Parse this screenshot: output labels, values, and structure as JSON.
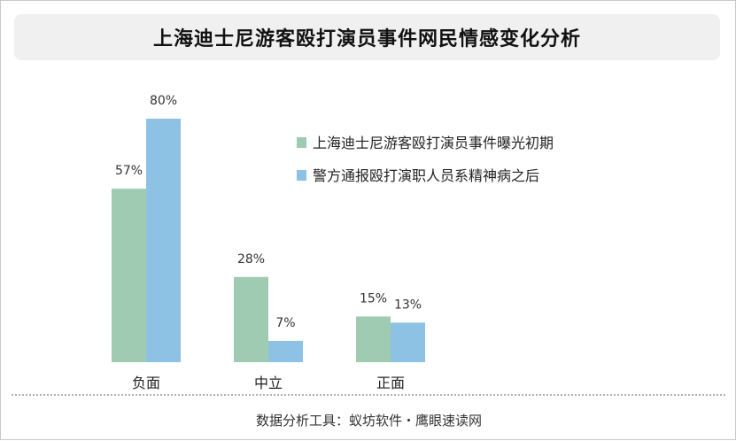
{
  "chart_data": {
    "type": "bar",
    "title": "上海迪士尼游客殴打演员事件网民情感变化分析",
    "categories": [
      "负面",
      "中立",
      "正面"
    ],
    "series": [
      {
        "name": "上海迪士尼游客殴打演员事件曝光初期",
        "values": [
          57,
          28,
          15
        ],
        "labels": [
          "57%",
          "28%",
          "15%"
        ],
        "color": "#9ecbb1"
      },
      {
        "name": "警方通报殴打演职人员系精神病之后",
        "values": [
          80,
          7,
          13
        ],
        "labels": [
          "80%",
          "7%",
          "13%"
        ],
        "color": "#8ec2e4"
      }
    ],
    "ylim": [
      0,
      100
    ],
    "grid": false,
    "legend_position": "top-right"
  },
  "footer": {
    "text": "数据分析工具：蚁坊软件・鹰眼速读网"
  }
}
